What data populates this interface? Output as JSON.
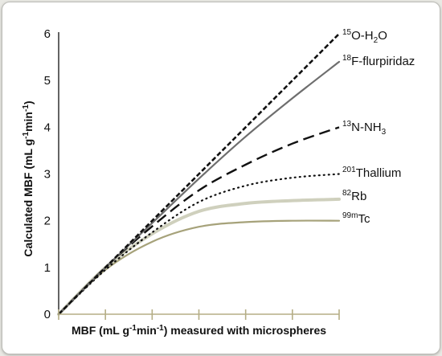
{
  "chart_data": {
    "type": "line",
    "title": "",
    "xlabel": "MBF (mL g-1min-1) measured with microspheres",
    "ylabel": "Calculated MBF (mL g-1min-1)",
    "ylim": [
      0,
      6
    ],
    "yticks": [
      "0",
      "1",
      "2",
      "3",
      "4",
      "5",
      "6"
    ],
    "xlim": [
      0,
      6
    ],
    "xticks_labeled": false,
    "grid": false,
    "series": [
      {
        "name": "15O-H2O",
        "label": {
          "sup": "15",
          "main": "O-H",
          "sub": "2",
          "tail": "O"
        },
        "style": "short-dash",
        "color": "#111111",
        "x": [
          0,
          1,
          2,
          3,
          4,
          5,
          6
        ],
        "y": [
          0,
          1,
          2,
          3,
          4,
          5,
          6
        ]
      },
      {
        "name": "18F-flurpiridaz",
        "label": {
          "sup": "18",
          "main": "F-flurpiridaz"
        },
        "style": "solid",
        "color": "#6e6e6e",
        "x": [
          0,
          1,
          2,
          3,
          4,
          5,
          6
        ],
        "y": [
          0,
          1,
          1.95,
          2.9,
          3.8,
          4.62,
          5.4
        ]
      },
      {
        "name": "13N-NH3",
        "label": {
          "sup": "13",
          "main": "N-NH",
          "sub": "3"
        },
        "style": "long-dash",
        "color": "#111111",
        "x": [
          0,
          1,
          2,
          3,
          4,
          5,
          6
        ],
        "y": [
          0,
          1,
          1.88,
          2.65,
          3.2,
          3.65,
          4.0
        ]
      },
      {
        "name": "201Thallium",
        "label": {
          "sup": "201",
          "main": "Thallium"
        },
        "style": "dotted",
        "color": "#111111",
        "x": [
          0,
          1,
          2,
          3,
          4,
          5,
          6
        ],
        "y": [
          0,
          0.95,
          1.75,
          2.4,
          2.75,
          2.92,
          3.0
        ]
      },
      {
        "name": "82Rb",
        "label": {
          "sup": "82",
          "main": "Rb"
        },
        "style": "solid",
        "color": "#cfd0bd",
        "x": [
          0,
          1,
          2,
          3,
          4,
          5,
          6
        ],
        "y": [
          0,
          1.0,
          1.72,
          2.2,
          2.37,
          2.43,
          2.46
        ]
      },
      {
        "name": "99mTc",
        "label": {
          "sup": "99m",
          "main": "Tc"
        },
        "style": "solid",
        "color": "#a6a27a",
        "x": [
          0,
          1,
          2,
          3,
          4,
          5,
          6
        ],
        "y": [
          0,
          0.95,
          1.55,
          1.87,
          1.97,
          2.0,
          2.0
        ]
      }
    ],
    "colors": {
      "axis": "#111111",
      "tick_marks": "#b5ae86"
    }
  }
}
